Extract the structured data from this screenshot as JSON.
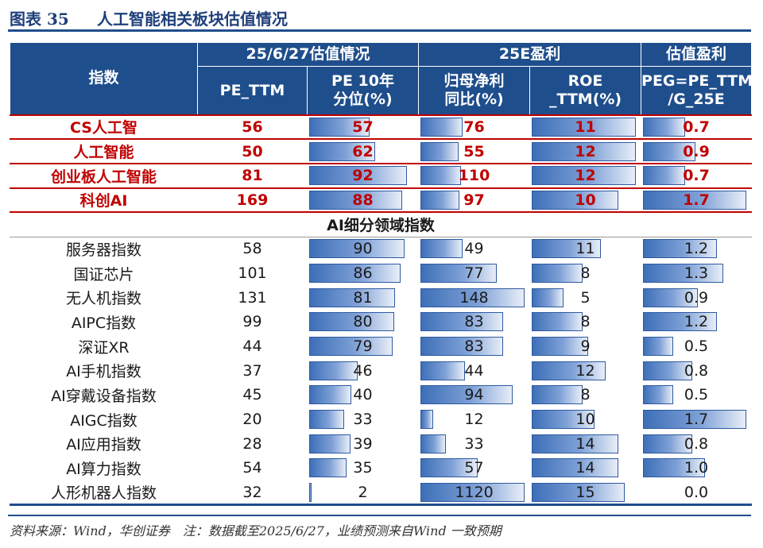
{
  "title": {
    "label": "图表 35",
    "text": "人工智能相关板块估值情况"
  },
  "header": {
    "index_col": "指数",
    "group_valuation": "25/6/27估值情况",
    "group_profit": "25E盈利",
    "group_peg": "估值盈利",
    "pe_ttm": "PE_TTM",
    "pe_pct_line1": "PE 10年",
    "pe_pct_line2": "分位(%)",
    "np_line1": "归母净利",
    "np_line2": "同比(%)",
    "roe_line1": "ROE",
    "roe_line2": "_TTM(%)",
    "peg_line1": "PEG=PE_TTM",
    "peg_line2": "/G_25E"
  },
  "subheading": "AI细分领域指数",
  "main_rows": [
    {
      "name": "CS人工智",
      "pe": "56",
      "pct": "57",
      "np": "76",
      "roe": "11",
      "peg": "0.7"
    },
    {
      "name": "人工智能",
      "pe": "50",
      "pct": "62",
      "np": "55",
      "roe": "12",
      "peg": "0.9"
    },
    {
      "name": "创业板人工智能",
      "pe": "81",
      "pct": "92",
      "np": "110",
      "roe": "12",
      "peg": "0.7"
    },
    {
      "name": "科创AI",
      "pe": "169",
      "pct": "88",
      "np": "97",
      "roe": "10",
      "peg": "1.7"
    }
  ],
  "ai_rows": [
    {
      "name": "服务器指数",
      "pe": "58",
      "pct": "90",
      "np": "49",
      "roe": "11",
      "peg": "1.2"
    },
    {
      "name": "国证芯片",
      "pe": "101",
      "pct": "86",
      "np": "77",
      "roe": "8",
      "peg": "1.3"
    },
    {
      "name": "无人机指数",
      "pe": "131",
      "pct": "81",
      "np": "148",
      "roe": "5",
      "peg": "0.9"
    },
    {
      "name": "AIPC指数",
      "pe": "99",
      "pct": "80",
      "np": "83",
      "roe": "8",
      "peg": "1.2"
    },
    {
      "name": "深证XR",
      "pe": "44",
      "pct": "79",
      "np": "83",
      "roe": "9",
      "peg": "0.5"
    },
    {
      "name": "AI手机指数",
      "pe": "37",
      "pct": "46",
      "np": "44",
      "roe": "12",
      "peg": "0.8"
    },
    {
      "name": "AI穿戴设备指数",
      "pe": "45",
      "pct": "40",
      "np": "94",
      "roe": "8",
      "peg": "0.5"
    },
    {
      "name": "AIGC指数",
      "pe": "20",
      "pct": "33",
      "np": "12",
      "roe": "10",
      "peg": "1.7"
    },
    {
      "name": "AI应用指数",
      "pe": "28",
      "pct": "39",
      "np": "33",
      "roe": "14",
      "peg": "0.8"
    },
    {
      "name": "AI算力指数",
      "pe": "54",
      "pct": "35",
      "np": "57",
      "roe": "14",
      "peg": "1.0"
    },
    {
      "name": "人形机器人指数",
      "pe": "32",
      "pct": "2",
      "np": "1120",
      "roe": "15",
      "peg": "0.0"
    }
  ],
  "bar_fills": {
    "main_rows": [
      {
        "pct": 0.57,
        "np": 0.4,
        "roe": 0.98,
        "peg": 0.4
      },
      {
        "pct": 0.62,
        "np": 0.36,
        "roe": 0.98,
        "peg": 0.5
      },
      {
        "pct": 0.92,
        "np": 0.38,
        "roe": 0.98,
        "peg": 0.4
      },
      {
        "pct": 0.88,
        "np": 0.37,
        "roe": 0.82,
        "peg": 0.98
      }
    ],
    "ai_rows": [
      {
        "pct": 0.9,
        "np": 0.4,
        "roe": 0.65,
        "peg": 0.7
      },
      {
        "pct": 0.86,
        "np": 0.72,
        "roe": 0.48,
        "peg": 0.76
      },
      {
        "pct": 0.81,
        "np": 0.98,
        "roe": 0.3,
        "peg": 0.52
      },
      {
        "pct": 0.8,
        "np": 0.78,
        "roe": 0.48,
        "peg": 0.7
      },
      {
        "pct": 0.79,
        "np": 0.78,
        "roe": 0.53,
        "peg": 0.29
      },
      {
        "pct": 0.46,
        "np": 0.42,
        "roe": 0.7,
        "peg": 0.47
      },
      {
        "pct": 0.4,
        "np": 0.87,
        "roe": 0.48,
        "peg": 0.29
      },
      {
        "pct": 0.33,
        "np": 0.12,
        "roe": 0.59,
        "peg": 0.98
      },
      {
        "pct": 0.39,
        "np": 0.24,
        "roe": 0.82,
        "peg": 0.47
      },
      {
        "pct": 0.35,
        "np": 0.54,
        "roe": 0.82,
        "peg": 0.59
      },
      {
        "pct": 0.02,
        "np": 0.98,
        "roe": 0.88,
        "peg": 0.0
      }
    ]
  },
  "footer": {
    "source": "资料来源：Wind，华创证券　注：数据截至2025/6/27，业绩预测来自Wind 一致预期"
  },
  "colors": {
    "header_bg": "#1f4e8c",
    "main_text": "#c00000",
    "bar": "#4a78c0"
  }
}
